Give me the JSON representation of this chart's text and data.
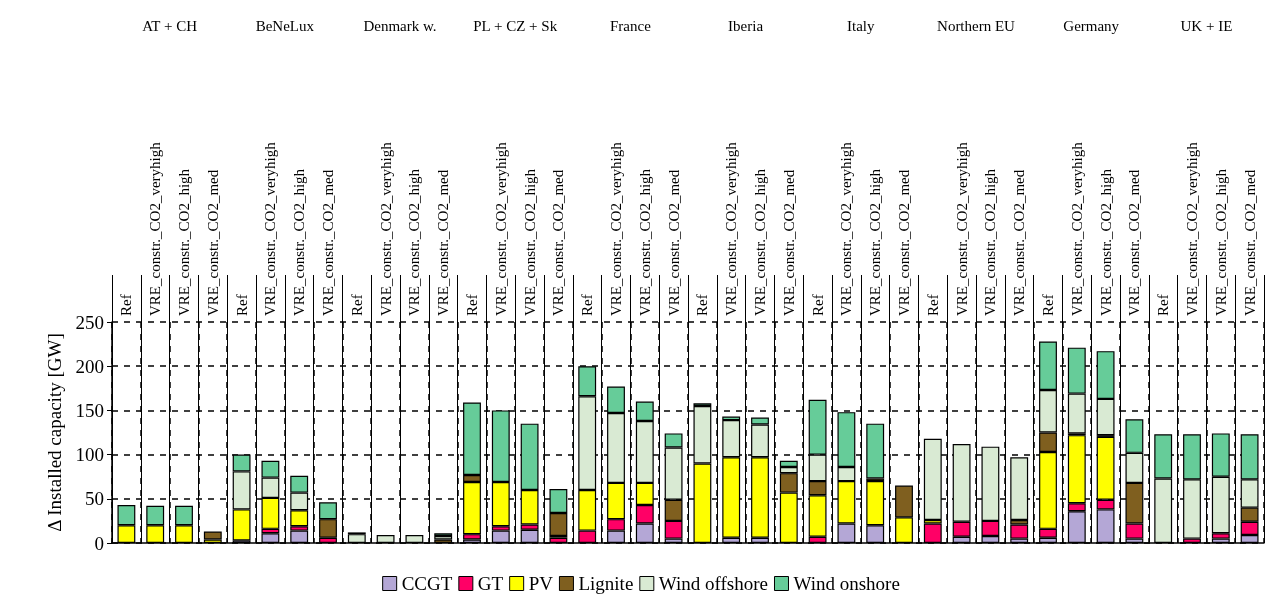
{
  "chart_data": {
    "type": "bar",
    "stacked": true,
    "ylabel": "Δ Installed capacity [GW]",
    "categories": [
      "Ref",
      "VRE_constr._CO2_veryhigh",
      "VRE_constr._CO2_high",
      "VRE_constr._CO2_med",
      "Ref",
      "VRE_constr._CO2_veryhigh",
      "VRE_constr._CO2_high",
      "VRE_constr._CO2_med",
      "Ref",
      "VRE_constr._CO2_veryhigh",
      "VRE_constr._CO2_high",
      "VRE_constr._CO2_med",
      "Ref",
      "VRE_constr._CO2_veryhigh",
      "VRE_constr._CO2_high",
      "VRE_constr._CO2_med",
      "Ref",
      "VRE_constr._CO2_veryhigh",
      "VRE_constr._CO2_high",
      "VRE_constr._CO2_med",
      "Ref",
      "VRE_constr._CO2_veryhigh",
      "VRE_constr._CO2_high",
      "VRE_constr._CO2_med",
      "Ref",
      "VRE_constr._CO2_veryhigh",
      "VRE_constr._CO2_high",
      "VRE_constr._CO2_med",
      "Ref",
      "VRE_constr._CO2_veryhigh",
      "VRE_constr._CO2_high",
      "VRE_constr._CO2_med",
      "Ref",
      "VRE_constr._CO2_veryhigh",
      "VRE_constr._CO2_high",
      "VRE_constr._CO2_med",
      "Ref",
      "VRE_constr._CO2_veryhigh",
      "VRE_constr._CO2_high",
      "VRE_constr._CO2_med"
    ],
    "annotations": [
      "AT + CH",
      "BeNeLux",
      "Denmark w.",
      "PL + CZ + Sk",
      "France",
      "Iberia",
      "Italy",
      "Northern EU",
      "Germany",
      "UK + IE"
    ],
    "series": [
      {
        "name": "CCGT",
        "color": "#b4a7d6",
        "values": [
          0,
          0,
          0,
          0,
          3,
          11,
          14,
          0,
          0,
          0,
          0,
          0,
          4,
          14,
          15,
          null,
          0,
          14,
          22,
          5,
          0,
          6,
          6,
          0,
          null,
          22,
          20,
          0,
          0,
          7,
          8,
          5,
          6,
          36,
          38,
          5,
          0,
          0,
          5,
          9
        ]
      },
      {
        "name": "GT",
        "color": "#ff0066",
        "values": [
          0,
          0,
          0,
          0,
          0,
          5,
          5,
          6,
          0,
          0,
          0,
          0,
          6,
          5,
          6,
          6,
          14,
          13,
          21,
          20,
          0,
          0,
          0,
          0,
          7,
          0,
          0,
          0,
          22,
          17,
          17,
          16,
          10,
          9,
          11,
          17,
          0,
          5,
          6,
          15
        ]
      },
      {
        "name": "PV",
        "color": "#ffff00",
        "values": [
          20,
          20,
          20,
          4,
          35,
          35,
          18,
          0,
          0,
          0,
          0,
          0,
          59,
          50,
          39,
          2,
          46,
          41,
          25,
          0,
          90,
          91,
          91,
          57,
          47,
          48,
          50,
          29,
          4,
          0,
          0,
          0,
          87,
          77,
          71,
          0,
          0,
          0,
          0,
          0
        ]
      },
      {
        "name": "Lignite",
        "color": "#7f5f1f",
        "values": [
          0,
          0,
          0,
          9,
          0,
          0,
          0,
          21,
          0,
          0,
          0,
          4,
          8,
          0,
          0,
          26,
          0,
          0,
          0,
          24,
          0,
          0,
          0,
          22,
          16,
          0,
          3,
          36,
          0,
          0,
          0,
          5,
          22,
          2,
          2,
          46,
          0,
          0,
          0,
          16
        ]
      },
      {
        "name": "Wind offshore",
        "color": "#d9ead3",
        "values": [
          0,
          0,
          0,
          0,
          43,
          23,
          20,
          0,
          10,
          9,
          9,
          4,
          0,
          0,
          0,
          0,
          106,
          79,
          70,
          59,
          65,
          42,
          37,
          7,
          30,
          16,
          0,
          0,
          92,
          88,
          84,
          71,
          48,
          45,
          41,
          34,
          73,
          67,
          64,
          32
        ]
      },
      {
        "name": "Wind onshore",
        "color": "#66cc99",
        "values": [
          23,
          22,
          22,
          0,
          19,
          19,
          19,
          19,
          2,
          0,
          0,
          3,
          82,
          81,
          75,
          27,
          34,
          30,
          22,
          16,
          3,
          4,
          8,
          7,
          62,
          62,
          62,
          0,
          0,
          0,
          0,
          0,
          55,
          52,
          54,
          38,
          50,
          51,
          49,
          51
        ]
      }
    ],
    "ylim": [
      0,
      250
    ],
    "yticks": [
      0,
      50,
      100,
      150,
      200,
      250
    ],
    "grid": true,
    "legend": "bottom"
  }
}
